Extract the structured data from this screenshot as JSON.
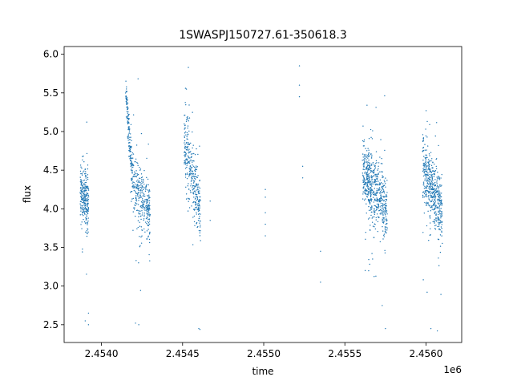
{
  "chart_data": {
    "type": "scatter",
    "title": "1SWASPJ150727.61-350618.3",
    "xlabel": "time",
    "ylabel": "flux",
    "x_offset_label": "1e6",
    "xlim": [
      2.45377,
      2.45622
    ],
    "ylim": [
      2.27,
      6.1
    ],
    "x_ticks": [
      2.454,
      2.4545,
      2.455,
      2.4555,
      2.456
    ],
    "x_tick_labels": [
      "2.4540",
      "2.4545",
      "2.4550",
      "2.4555",
      "2.4560"
    ],
    "y_ticks": [
      2.5,
      3.0,
      3.5,
      4.0,
      4.5,
      5.0,
      5.5,
      6.0
    ],
    "y_tick_labels": [
      "2.5",
      "3.0",
      "3.5",
      "4.0",
      "4.5",
      "5.0",
      "5.5",
      "6.0"
    ],
    "grid": false,
    "legend": "none",
    "point_color": "#1f77b4",
    "series": [
      {
        "segments": [
          {
            "x_start": 2.45387,
            "x_end": 2.45392,
            "y_start": 4.2,
            "y_end": 4.1,
            "spread": 0.18,
            "n": 260
          },
          {
            "x_start": 2.45415,
            "x_end": 2.45419,
            "y_start": 5.55,
            "y_end": 4.4,
            "spread": 0.12,
            "n": 160
          },
          {
            "x_start": 2.45419,
            "x_end": 2.4543,
            "y_start": 4.35,
            "y_end": 3.95,
            "spread": 0.2,
            "n": 320
          },
          {
            "x_start": 2.45451,
            "x_end": 2.45461,
            "y_start": 4.9,
            "y_end": 3.95,
            "spread": 0.22,
            "n": 340
          },
          {
            "x_start": 2.45561,
            "x_end": 2.45576,
            "y_start": 4.45,
            "y_end": 4.0,
            "spread": 0.22,
            "n": 620
          },
          {
            "x_start": 2.45598,
            "x_end": 2.4561,
            "y_start": 4.55,
            "y_end": 3.95,
            "spread": 0.22,
            "n": 520
          }
        ],
        "isolated_points": [
          {
            "x": 2.4539,
            "y": 2.55
          },
          {
            "x": 2.45392,
            "y": 2.5
          },
          {
            "x": 2.45392,
            "y": 2.65
          },
          {
            "x": 2.45421,
            "y": 2.52
          },
          {
            "x": 2.45423,
            "y": 2.5
          },
          {
            "x": 2.4546,
            "y": 2.45
          },
          {
            "x": 2.45467,
            "y": 4.1
          },
          {
            "x": 2.45467,
            "y": 3.85
          },
          {
            "x": 2.45501,
            "y": 4.25
          },
          {
            "x": 2.45501,
            "y": 4.15
          },
          {
            "x": 2.45501,
            "y": 3.95
          },
          {
            "x": 2.45501,
            "y": 3.8
          },
          {
            "x": 2.45501,
            "y": 3.65
          },
          {
            "x": 2.45522,
            "y": 5.85
          },
          {
            "x": 2.45522,
            "y": 5.6
          },
          {
            "x": 2.45522,
            "y": 5.45
          },
          {
            "x": 2.45524,
            "y": 4.55
          },
          {
            "x": 2.45524,
            "y": 4.4
          },
          {
            "x": 2.45535,
            "y": 3.05
          },
          {
            "x": 2.45535,
            "y": 3.45
          },
          {
            "x": 2.45575,
            "y": 2.45
          },
          {
            "x": 2.45607,
            "y": 2.42
          },
          {
            "x": 2.45603,
            "y": 2.45
          }
        ]
      }
    ]
  }
}
